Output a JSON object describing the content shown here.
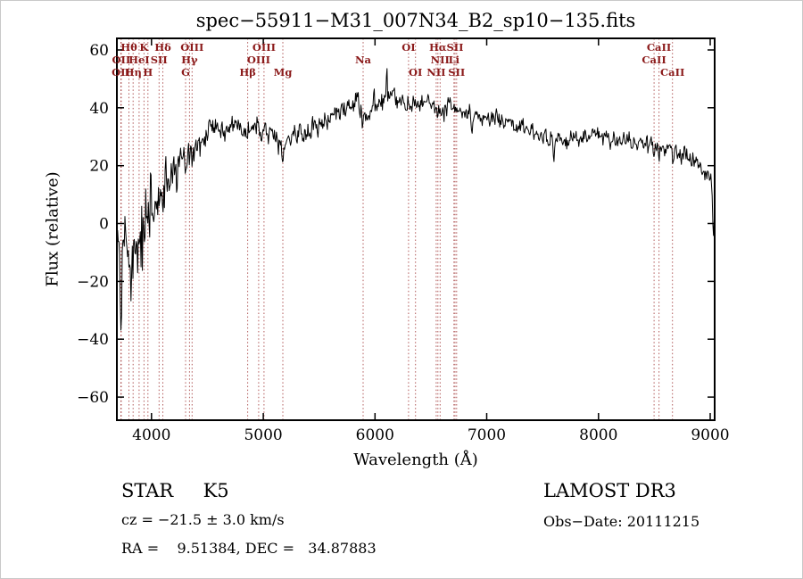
{
  "title": "spec−55911−M31_007N34_B2_sp10−135.fits",
  "chart_data": {
    "type": "line",
    "title": "spec−55911−M31_007N34_B2_sp10−135.fits",
    "xlabel": "Wavelength (Å)",
    "ylabel": "Flux (relative)",
    "xlim": [
      3690,
      9040
    ],
    "ylim": [
      -68,
      64
    ],
    "grid": false,
    "x_ticks": [
      4000,
      5000,
      6000,
      7000,
      8000,
      9000
    ],
    "x_tick_labels": [
      "4000",
      "5000",
      "6000",
      "7000",
      "8000",
      "9000"
    ],
    "y_ticks": [
      60,
      40,
      20,
      0,
      -20,
      -40,
      -60
    ],
    "y_tick_labels": [
      "60",
      "40",
      "20",
      "0",
      "−20",
      "−40",
      "−60"
    ],
    "line_color": "#000000",
    "marker_line_color": "#a33c3c",
    "marker_label_color": "#8b1a1a",
    "spectral_lines": [
      {
        "wl": 3726,
        "label": "OII",
        "row": 3
      },
      {
        "wl": 3729,
        "label": "OII",
        "row": 2
      },
      {
        "wl": 3798,
        "label": "Hθ",
        "row": 1
      },
      {
        "wl": 3835,
        "label": "Hη",
        "row": 3
      },
      {
        "wl": 3889,
        "label": "HeI",
        "row": 2
      },
      {
        "wl": 3933,
        "label": "K",
        "row": 1
      },
      {
        "wl": 3968,
        "label": "H",
        "row": 3
      },
      {
        "wl": 4068,
        "label": "SII",
        "row": 2
      },
      {
        "wl": 4101,
        "label": "Hδ",
        "row": 1
      },
      {
        "wl": 4305,
        "label": "G",
        "row": 3
      },
      {
        "wl": 4340,
        "label": "Hγ",
        "row": 2
      },
      {
        "wl": 4363,
        "label": "OIII",
        "row": 1
      },
      {
        "wl": 4861,
        "label": "Hβ",
        "row": 3
      },
      {
        "wl": 4959,
        "label": "OIII",
        "row": 2
      },
      {
        "wl": 5007,
        "label": "OIII",
        "row": 1
      },
      {
        "wl": 5175,
        "label": "Mg",
        "row": 3
      },
      {
        "wl": 5894,
        "label": "Na",
        "row": 2
      },
      {
        "wl": 6300,
        "label": "OI",
        "row": 1
      },
      {
        "wl": 6363,
        "label": "OI",
        "row": 3
      },
      {
        "wl": 6548,
        "label": "NII",
        "row": 3
      },
      {
        "wl": 6563,
        "label": "Hα",
        "row": 1
      },
      {
        "wl": 6583,
        "label": "NII",
        "row": 2
      },
      {
        "wl": 6707,
        "label": "Li",
        "row": 2
      },
      {
        "wl": 6716,
        "label": "SII",
        "row": 1
      },
      {
        "wl": 6731,
        "label": "SII",
        "row": 3
      },
      {
        "wl": 8498,
        "label": "CaII",
        "row": 2
      },
      {
        "wl": 8542,
        "label": "CaII",
        "row": 1
      },
      {
        "wl": 8662,
        "label": "CaII",
        "row": 3
      }
    ],
    "spectrum": {
      "step": 6,
      "seed": 20111215,
      "continuum_anchors": {
        "x": [
          3690,
          3750,
          3850,
          3950,
          4050,
          4150,
          4250,
          4400,
          4550,
          4700,
          4850,
          5000,
          5150,
          5300,
          5450,
          5600,
          5750,
          5850,
          5950,
          6050,
          6150,
          6250,
          6350,
          6450,
          6550,
          6650,
          6750,
          6900,
          7100,
          7300,
          7500,
          7700,
          7900,
          8100,
          8300,
          8450,
          8600,
          8750,
          8900,
          9040
        ],
        "y": [
          -12,
          -10,
          -6,
          0,
          10,
          16,
          20,
          27,
          31,
          33,
          33,
          33,
          29,
          30,
          33,
          36,
          41,
          41,
          38,
          42,
          44,
          41,
          41,
          42,
          40,
          40,
          39,
          37,
          36,
          33,
          30,
          29,
          30,
          29,
          29,
          27,
          25,
          24,
          21,
          16
        ]
      },
      "noise_anchors": {
        "x": [
          3690,
          3800,
          3900,
          4000,
          4100,
          4300,
          4500,
          5000,
          5500,
          6000,
          6500,
          7000,
          7500,
          8000,
          8500,
          9040
        ],
        "amp": [
          16,
          15,
          12,
          9,
          7,
          5,
          3.5,
          3,
          2.8,
          3.2,
          2.5,
          2.2,
          2.2,
          2.2,
          2.5,
          3
        ]
      },
      "features": [
        {
          "x": 3730,
          "amp": -18,
          "sigma": 10
        },
        {
          "x": 3790,
          "amp": -12,
          "sigma": 6
        },
        {
          "x": 3935,
          "amp": -10,
          "sigma": 5
        },
        {
          "x": 3968,
          "amp": -8,
          "sigma": 5
        },
        {
          "x": 4101,
          "amp": -6,
          "sigma": 7
        },
        {
          "x": 4305,
          "amp": -6,
          "sigma": 9
        },
        {
          "x": 4340,
          "amp": -4,
          "sigma": 5
        },
        {
          "x": 4861,
          "amp": -4,
          "sigma": 6
        },
        {
          "x": 5175,
          "amp": -6,
          "sigma": 11
        },
        {
          "x": 5890,
          "amp": -8,
          "sigma": 9
        },
        {
          "x": 5990,
          "amp": 10,
          "sigma": 4
        },
        {
          "x": 6105,
          "amp": 16,
          "sigma": 4
        },
        {
          "x": 6563,
          "amp": -4,
          "sigma": 5
        },
        {
          "x": 6867,
          "amp": -6,
          "sigma": 8
        },
        {
          "x": 7600,
          "amp": -7,
          "sigma": 9
        },
        {
          "x": 8498,
          "amp": -5,
          "sigma": 5
        },
        {
          "x": 8542,
          "amp": -6,
          "sigma": 5
        },
        {
          "x": 8662,
          "amp": -6,
          "sigma": 5
        },
        {
          "x": 9030,
          "amp": -20,
          "sigma": 10
        }
      ]
    }
  },
  "annotations": {
    "class_label": "STAR     K5",
    "survey": "LAMOST DR3",
    "cz": "cz = −21.5 ± 3.0 km/s",
    "obs_date": "Obs−Date: 20111215",
    "radec": "RA =    9.51384, DEC =   34.87883"
  }
}
